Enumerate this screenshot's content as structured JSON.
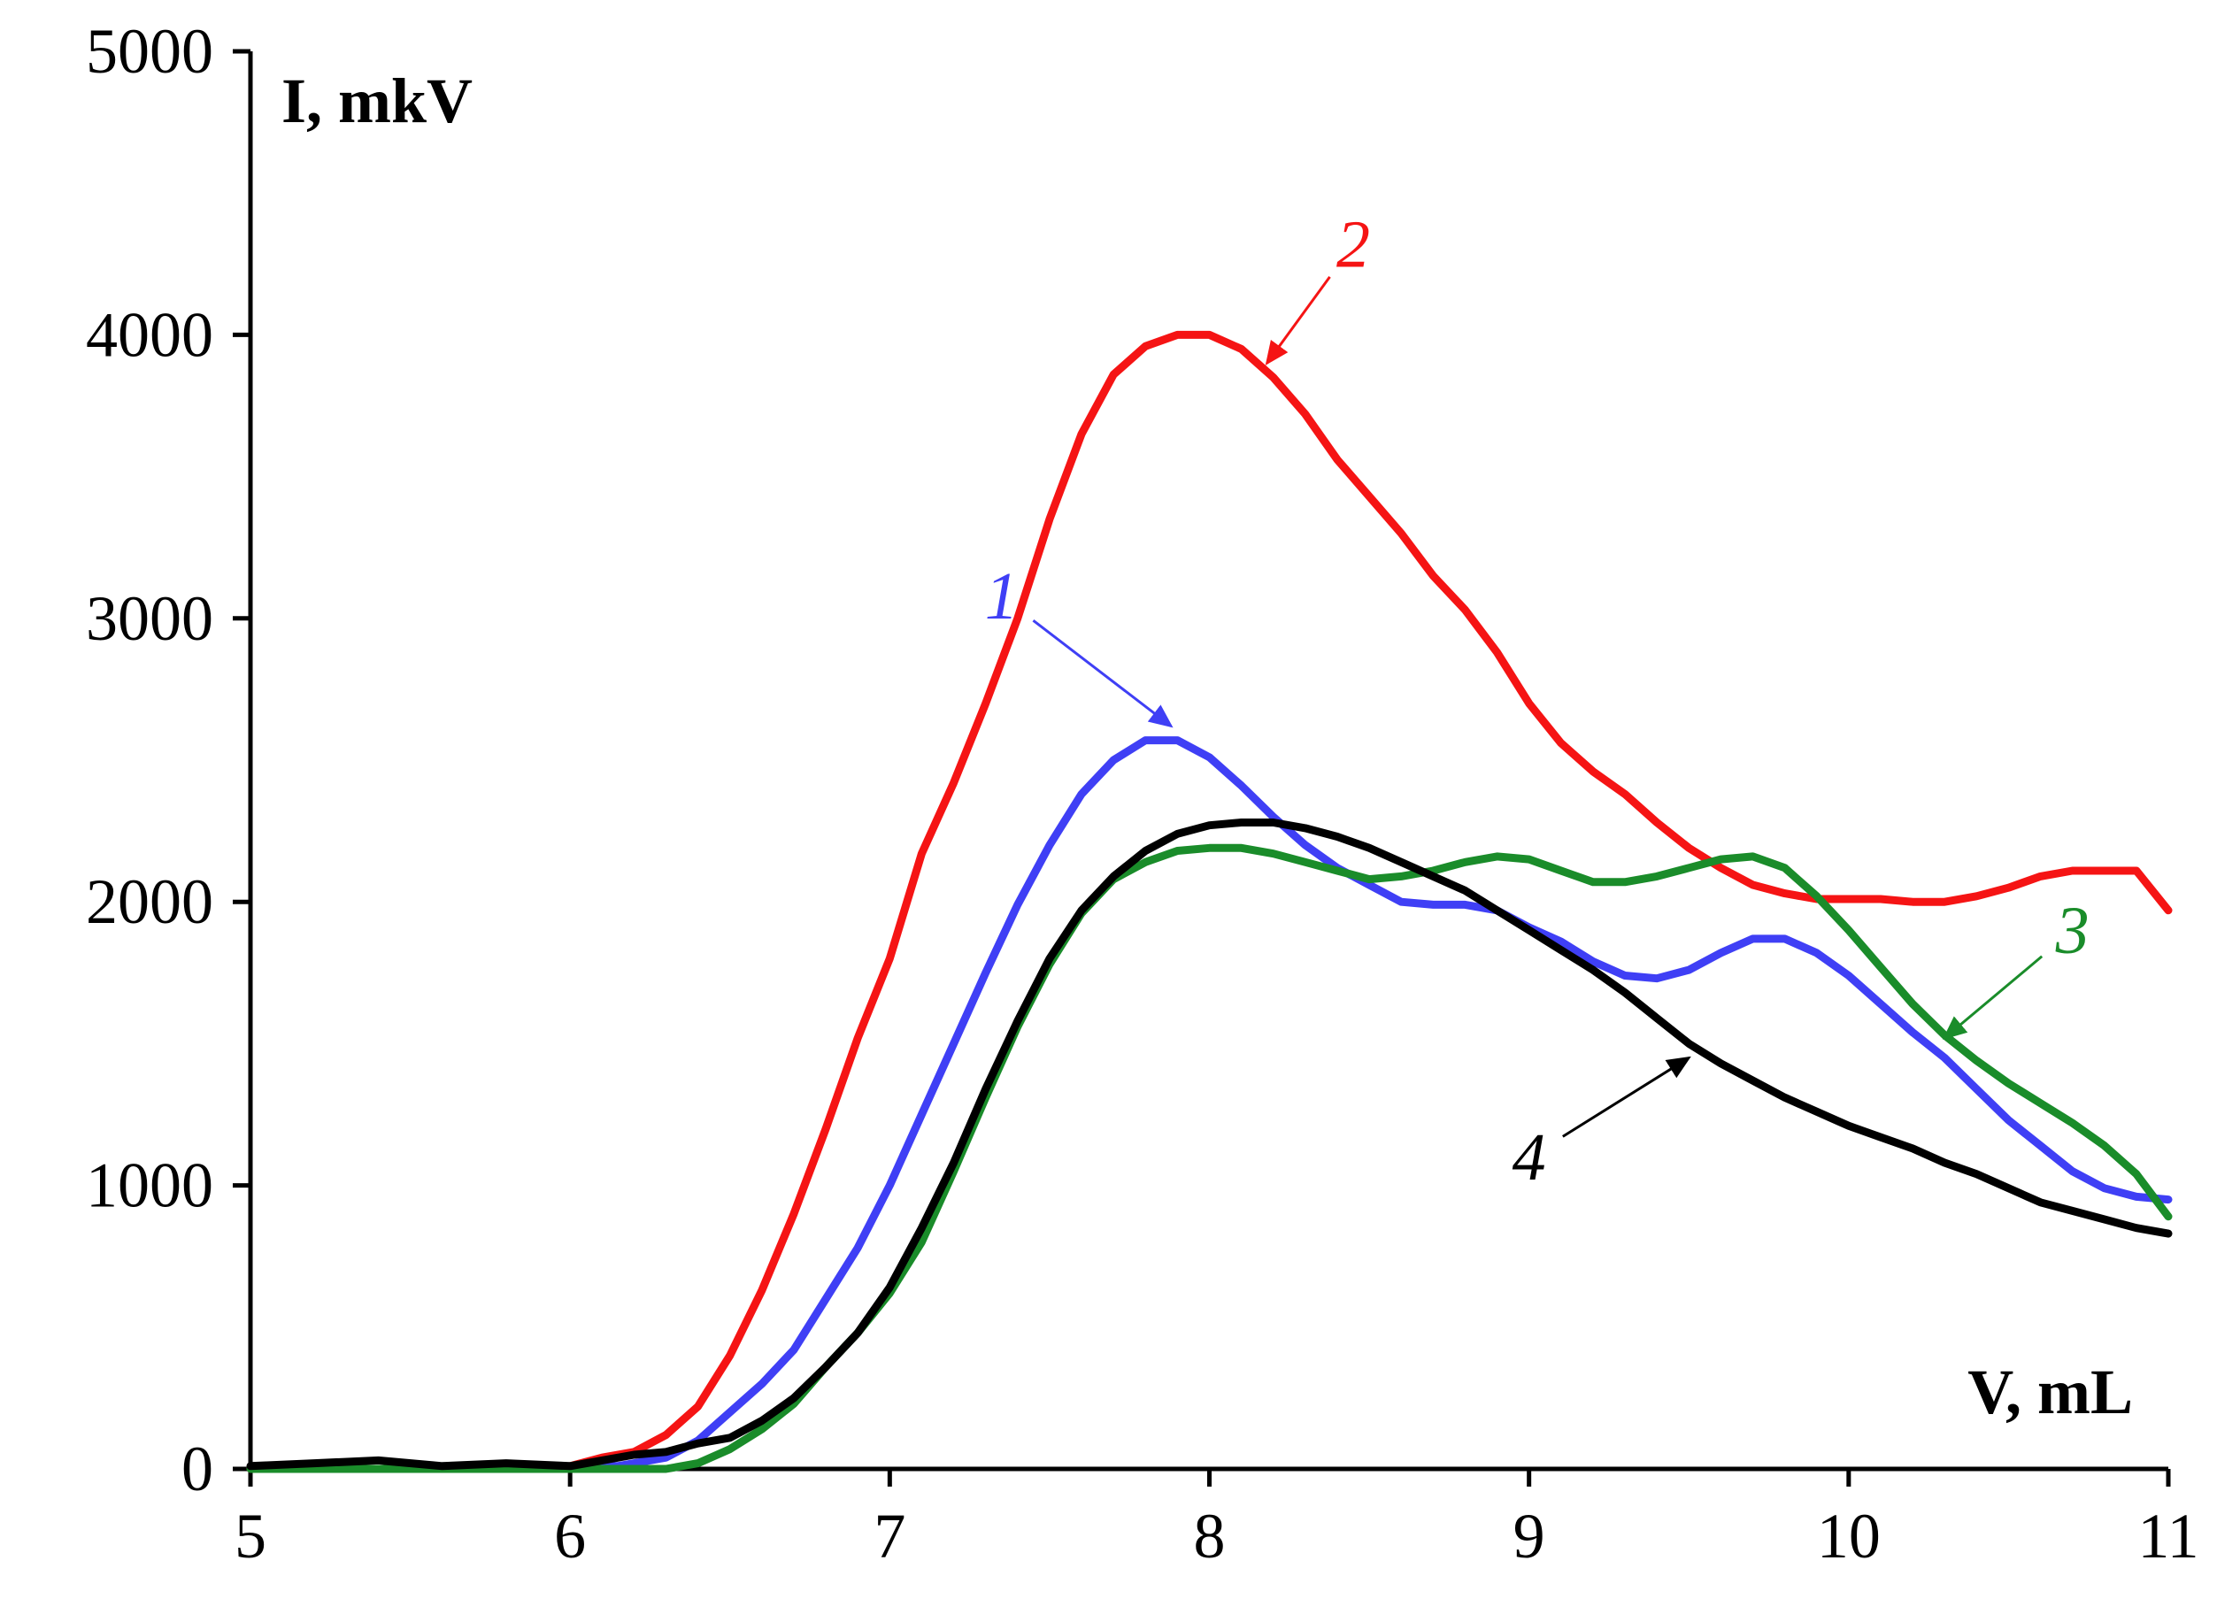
{
  "chart_data": {
    "type": "line",
    "title": "",
    "xlabel": "V, mL",
    "ylabel": "I, mkV",
    "xlim": [
      5,
      11
    ],
    "ylim": [
      0,
      5000
    ],
    "x_ticks": [
      5,
      6,
      7,
      8,
      9,
      10,
      11
    ],
    "y_ticks": [
      0,
      1000,
      2000,
      3000,
      4000,
      5000
    ],
    "grid": false,
    "series": [
      {
        "name": "1",
        "color": "#3f3ff5",
        "label_at": [
          7.35,
          3000
        ],
        "arrow_to": [
          7.88,
          2620
        ],
        "points": [
          [
            5.0,
            0
          ],
          [
            6.0,
            0
          ],
          [
            6.15,
            10
          ],
          [
            6.3,
            40
          ],
          [
            6.4,
            100
          ],
          [
            6.5,
            200
          ],
          [
            6.6,
            300
          ],
          [
            6.7,
            420
          ],
          [
            6.8,
            600
          ],
          [
            6.9,
            780
          ],
          [
            7.0,
            1000
          ],
          [
            7.1,
            1250
          ],
          [
            7.2,
            1500
          ],
          [
            7.3,
            1750
          ],
          [
            7.4,
            1990
          ],
          [
            7.5,
            2200
          ],
          [
            7.6,
            2380
          ],
          [
            7.7,
            2500
          ],
          [
            7.8,
            2570
          ],
          [
            7.9,
            2570
          ],
          [
            8.0,
            2510
          ],
          [
            8.1,
            2410
          ],
          [
            8.2,
            2300
          ],
          [
            8.3,
            2200
          ],
          [
            8.4,
            2120
          ],
          [
            8.5,
            2060
          ],
          [
            8.6,
            2000
          ],
          [
            8.7,
            1990
          ],
          [
            8.8,
            1990
          ],
          [
            8.9,
            1970
          ],
          [
            9.0,
            1910
          ],
          [
            9.1,
            1860
          ],
          [
            9.2,
            1790
          ],
          [
            9.3,
            1740
          ],
          [
            9.4,
            1730
          ],
          [
            9.5,
            1760
          ],
          [
            9.6,
            1820
          ],
          [
            9.7,
            1870
          ],
          [
            9.8,
            1870
          ],
          [
            9.9,
            1820
          ],
          [
            10.0,
            1740
          ],
          [
            10.1,
            1640
          ],
          [
            10.2,
            1540
          ],
          [
            10.3,
            1450
          ],
          [
            10.4,
            1340
          ],
          [
            10.5,
            1230
          ],
          [
            10.6,
            1140
          ],
          [
            10.7,
            1050
          ],
          [
            10.8,
            990
          ],
          [
            10.9,
            960
          ],
          [
            11.0,
            950
          ]
        ]
      },
      {
        "name": "2",
        "color": "#f51414",
        "label_at": [
          8.45,
          4240
        ],
        "arrow_to": [
          8.18,
          3900
        ],
        "points": [
          [
            5.0,
            0
          ],
          [
            5.9,
            0
          ],
          [
            6.0,
            10
          ],
          [
            6.1,
            40
          ],
          [
            6.2,
            60
          ],
          [
            6.3,
            120
          ],
          [
            6.4,
            220
          ],
          [
            6.5,
            400
          ],
          [
            6.6,
            630
          ],
          [
            6.7,
            900
          ],
          [
            6.8,
            1200
          ],
          [
            6.9,
            1520
          ],
          [
            7.0,
            1800
          ],
          [
            7.1,
            2170
          ],
          [
            7.2,
            2420
          ],
          [
            7.3,
            2700
          ],
          [
            7.4,
            3000
          ],
          [
            7.5,
            3350
          ],
          [
            7.6,
            3650
          ],
          [
            7.7,
            3860
          ],
          [
            7.8,
            3960
          ],
          [
            7.9,
            4000
          ],
          [
            8.0,
            4000
          ],
          [
            8.1,
            3950
          ],
          [
            8.2,
            3850
          ],
          [
            8.3,
            3720
          ],
          [
            8.4,
            3560
          ],
          [
            8.5,
            3430
          ],
          [
            8.6,
            3300
          ],
          [
            8.7,
            3150
          ],
          [
            8.8,
            3030
          ],
          [
            8.9,
            2880
          ],
          [
            9.0,
            2700
          ],
          [
            9.1,
            2560
          ],
          [
            9.2,
            2460
          ],
          [
            9.3,
            2380
          ],
          [
            9.4,
            2280
          ],
          [
            9.5,
            2190
          ],
          [
            9.6,
            2120
          ],
          [
            9.7,
            2060
          ],
          [
            9.8,
            2030
          ],
          [
            9.9,
            2010
          ],
          [
            10.0,
            2010
          ],
          [
            10.1,
            2010
          ],
          [
            10.2,
            2000
          ],
          [
            10.3,
            2000
          ],
          [
            10.4,
            2020
          ],
          [
            10.5,
            2050
          ],
          [
            10.6,
            2090
          ],
          [
            10.7,
            2110
          ],
          [
            10.8,
            2110
          ],
          [
            10.9,
            2110
          ],
          [
            11.0,
            1970
          ]
        ]
      },
      {
        "name": "3",
        "color": "#1a8c2a",
        "label_at": [
          10.7,
          1820
        ],
        "arrow_to": [
          10.3,
          1520
        ],
        "points": [
          [
            5.0,
            0
          ],
          [
            6.3,
            0
          ],
          [
            6.4,
            20
          ],
          [
            6.5,
            70
          ],
          [
            6.6,
            140
          ],
          [
            6.7,
            230
          ],
          [
            6.8,
            360
          ],
          [
            6.9,
            480
          ],
          [
            7.0,
            620
          ],
          [
            7.1,
            800
          ],
          [
            7.2,
            1050
          ],
          [
            7.3,
            1310
          ],
          [
            7.4,
            1560
          ],
          [
            7.5,
            1780
          ],
          [
            7.6,
            1960
          ],
          [
            7.7,
            2080
          ],
          [
            7.8,
            2140
          ],
          [
            7.9,
            2180
          ],
          [
            8.0,
            2190
          ],
          [
            8.1,
            2190
          ],
          [
            8.2,
            2170
          ],
          [
            8.3,
            2140
          ],
          [
            8.4,
            2110
          ],
          [
            8.5,
            2080
          ],
          [
            8.6,
            2090
          ],
          [
            8.7,
            2110
          ],
          [
            8.8,
            2140
          ],
          [
            8.9,
            2160
          ],
          [
            9.0,
            2150
          ],
          [
            9.1,
            2110
          ],
          [
            9.2,
            2070
          ],
          [
            9.3,
            2070
          ],
          [
            9.4,
            2090
          ],
          [
            9.5,
            2120
          ],
          [
            9.6,
            2150
          ],
          [
            9.7,
            2160
          ],
          [
            9.8,
            2120
          ],
          [
            9.9,
            2020
          ],
          [
            10.0,
            1900
          ],
          [
            10.1,
            1770
          ],
          [
            10.2,
            1640
          ],
          [
            10.3,
            1530
          ],
          [
            10.4,
            1440
          ],
          [
            10.5,
            1360
          ],
          [
            10.6,
            1290
          ],
          [
            10.7,
            1220
          ],
          [
            10.8,
            1140
          ],
          [
            10.9,
            1040
          ],
          [
            11.0,
            890
          ]
        ]
      },
      {
        "name": "4",
        "color": "#000000",
        "label_at": [
          9.0,
          1020
        ],
        "arrow_to": [
          9.5,
          1450
        ],
        "points": [
          [
            5.0,
            10
          ],
          [
            5.2,
            20
          ],
          [
            5.4,
            30
          ],
          [
            5.6,
            10
          ],
          [
            5.8,
            20
          ],
          [
            6.0,
            10
          ],
          [
            6.1,
            30
          ],
          [
            6.2,
            50
          ],
          [
            6.3,
            60
          ],
          [
            6.4,
            90
          ],
          [
            6.5,
            110
          ],
          [
            6.6,
            170
          ],
          [
            6.7,
            250
          ],
          [
            6.8,
            360
          ],
          [
            6.9,
            480
          ],
          [
            7.0,
            640
          ],
          [
            7.1,
            850
          ],
          [
            7.2,
            1080
          ],
          [
            7.3,
            1340
          ],
          [
            7.4,
            1580
          ],
          [
            7.5,
            1800
          ],
          [
            7.6,
            1970
          ],
          [
            7.7,
            2090
          ],
          [
            7.8,
            2180
          ],
          [
            7.9,
            2240
          ],
          [
            8.0,
            2270
          ],
          [
            8.1,
            2280
          ],
          [
            8.2,
            2280
          ],
          [
            8.3,
            2260
          ],
          [
            8.4,
            2230
          ],
          [
            8.5,
            2190
          ],
          [
            8.6,
            2140
          ],
          [
            8.7,
            2090
          ],
          [
            8.8,
            2040
          ],
          [
            8.9,
            1970
          ],
          [
            9.0,
            1900
          ],
          [
            9.1,
            1830
          ],
          [
            9.2,
            1760
          ],
          [
            9.3,
            1680
          ],
          [
            9.4,
            1590
          ],
          [
            9.5,
            1500
          ],
          [
            9.6,
            1430
          ],
          [
            9.7,
            1370
          ],
          [
            9.8,
            1310
          ],
          [
            9.9,
            1260
          ],
          [
            10.0,
            1210
          ],
          [
            10.1,
            1170
          ],
          [
            10.2,
            1130
          ],
          [
            10.3,
            1080
          ],
          [
            10.4,
            1040
          ],
          [
            10.5,
            990
          ],
          [
            10.6,
            940
          ],
          [
            10.7,
            910
          ],
          [
            10.8,
            880
          ],
          [
            10.9,
            850
          ],
          [
            11.0,
            830
          ]
        ]
      }
    ]
  }
}
